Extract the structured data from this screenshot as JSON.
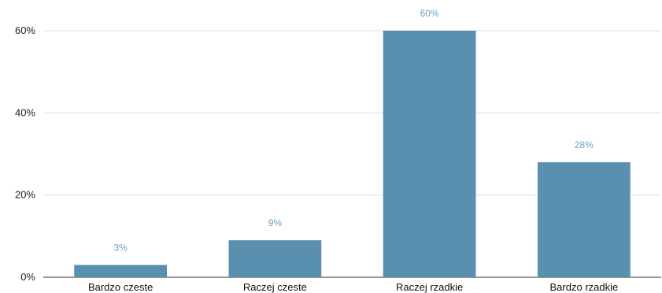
{
  "chart_data": {
    "type": "bar",
    "categories": [
      "Bardzo czeste",
      "Raczej czeste",
      "Raczej rzadkie",
      "Bardzo rzadkie"
    ],
    "values": [
      3,
      9,
      60,
      28
    ],
    "data_labels": [
      "3%",
      "9%",
      "60%",
      "28%"
    ],
    "y_ticks": [
      0,
      20,
      40,
      60
    ],
    "y_tick_labels": [
      "0%",
      "20%",
      "40%",
      "60%"
    ],
    "ylim": [
      0,
      60
    ],
    "title": "",
    "xlabel": "",
    "ylabel": "",
    "grid": true,
    "legend": "none",
    "colors": {
      "bar": "#5990b0",
      "data_label": "#6d9fbc",
      "grid": "#dddddd",
      "axis": "#333333"
    }
  }
}
